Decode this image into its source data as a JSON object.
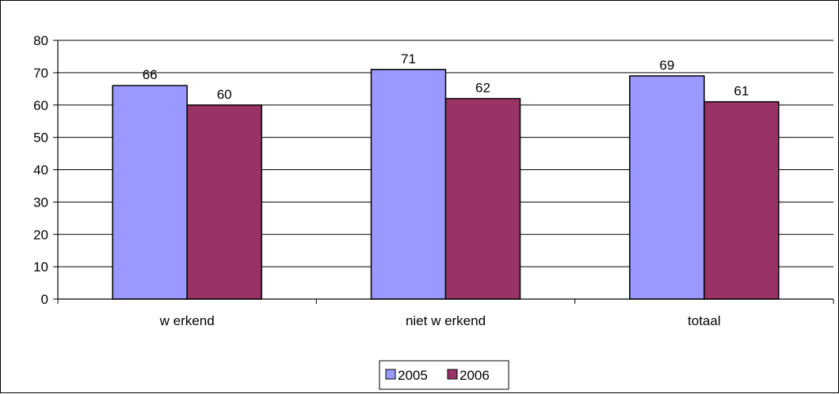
{
  "chart_data": {
    "type": "bar",
    "title": "",
    "xlabel": "",
    "ylabel": "",
    "categories": [
      "w erkend",
      "niet w erkend",
      "totaal"
    ],
    "series": [
      {
        "name": "2005",
        "values": [
          66,
          71,
          69
        ],
        "color": "#9999FF"
      },
      {
        "name": "2006",
        "values": [
          60,
          62,
          61
        ],
        "color": "#993366"
      }
    ],
    "ylim": [
      0,
      80
    ],
    "yticks": [
      0,
      10,
      20,
      30,
      40,
      50,
      60,
      70,
      80
    ],
    "grid": true,
    "legend_position": "bottom",
    "data_labels": true
  }
}
